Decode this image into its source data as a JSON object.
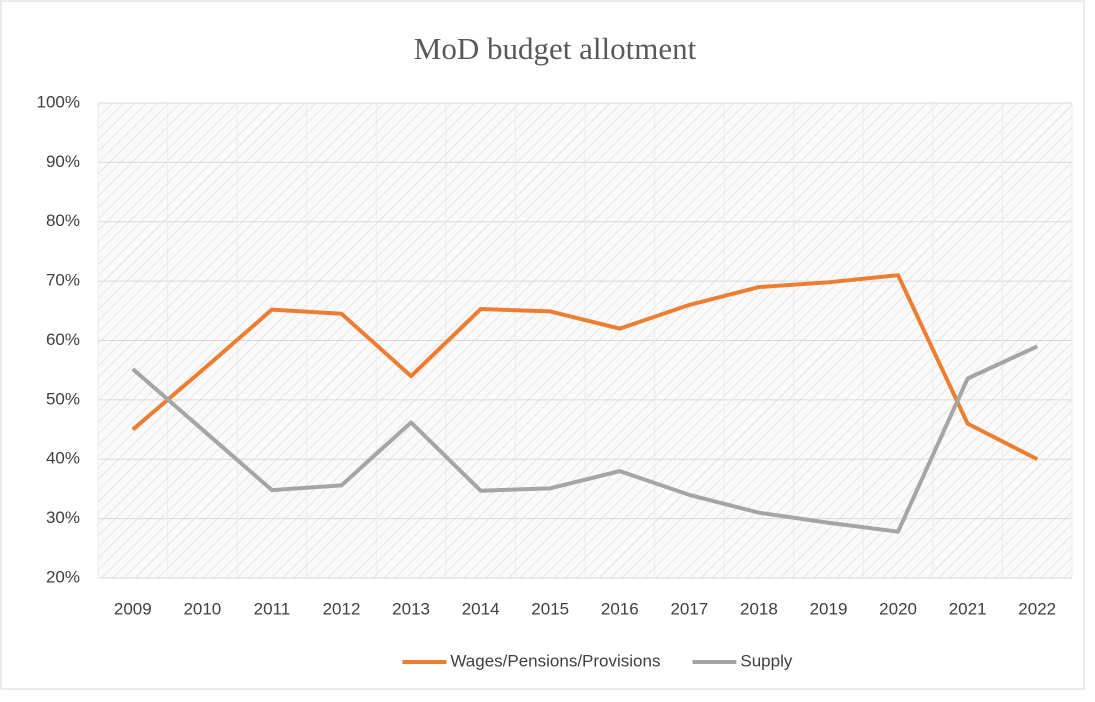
{
  "chart_data": {
    "type": "line",
    "title": "MoD budget allotment",
    "categories": [
      "2009",
      "2010",
      "2011",
      "2012",
      "2013",
      "2014",
      "2015",
      "2016",
      "2017",
      "2018",
      "2019",
      "2020",
      "2021",
      "2022"
    ],
    "series": [
      {
        "name": "Wages/Pensions/Provisions",
        "color": "#ed7d31",
        "values": [
          45,
          55,
          65.2,
          64.5,
          54,
          65.3,
          64.9,
          62,
          66,
          69,
          69.8,
          71,
          46,
          40
        ]
      },
      {
        "name": "Supply",
        "color": "#a5a5a5",
        "values": [
          55.2,
          45,
          34.8,
          35.6,
          46.2,
          34.7,
          35.1,
          38,
          34,
          31,
          29.3,
          27.8,
          53.6,
          59
        ]
      }
    ],
    "ylim": [
      20,
      100
    ],
    "yticks": [
      {
        "value": 20,
        "label": "20%"
      },
      {
        "value": 30,
        "label": "30%"
      },
      {
        "value": 40,
        "label": "40%"
      },
      {
        "value": 50,
        "label": "50%"
      },
      {
        "value": 60,
        "label": "60%"
      },
      {
        "value": 70,
        "label": "70%"
      },
      {
        "value": 80,
        "label": "80%"
      },
      {
        "value": 90,
        "label": "90%"
      },
      {
        "value": 100,
        "label": "100%"
      }
    ],
    "grid": true,
    "legend": "bottom"
  }
}
